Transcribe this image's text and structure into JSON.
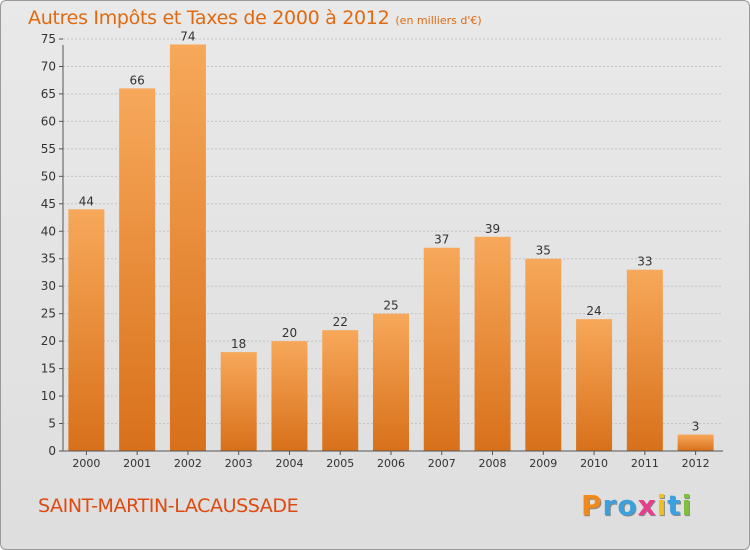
{
  "title": {
    "main": "Autres Impôts et Taxes de 2000 à 2012",
    "unit": "(en milliers d'€)"
  },
  "commune": "SAINT-MARTIN-LACAUSSADE",
  "logo": {
    "letters": [
      "P",
      "r",
      "o",
      "x",
      "i",
      "t",
      "i"
    ],
    "colors": [
      "#f08a1c",
      "#3ca0dc",
      "#3ca0dc",
      "#e83c8c",
      "#f0c020",
      "#3ca0dc",
      "#80c040"
    ]
  },
  "colors": {
    "bar_top": "#f7a85a",
    "bar_bottom": "#d8701a",
    "text": "#e06a10",
    "axis": "#555555"
  },
  "chart_data": {
    "type": "bar",
    "categories": [
      "2000",
      "2001",
      "2002",
      "2003",
      "2004",
      "2005",
      "2006",
      "2007",
      "2008",
      "2009",
      "2010",
      "2011",
      "2012"
    ],
    "values": [
      44,
      66,
      74,
      18,
      20,
      22,
      25,
      37,
      39,
      35,
      24,
      33,
      3
    ],
    "title": "Autres Impôts et Taxes de 2000 à 2012",
    "ylim": [
      0,
      75
    ],
    "yticks": [
      0,
      5,
      10,
      15,
      20,
      25,
      30,
      35,
      40,
      45,
      50,
      55,
      60,
      65,
      70,
      75
    ],
    "grid": true
  }
}
